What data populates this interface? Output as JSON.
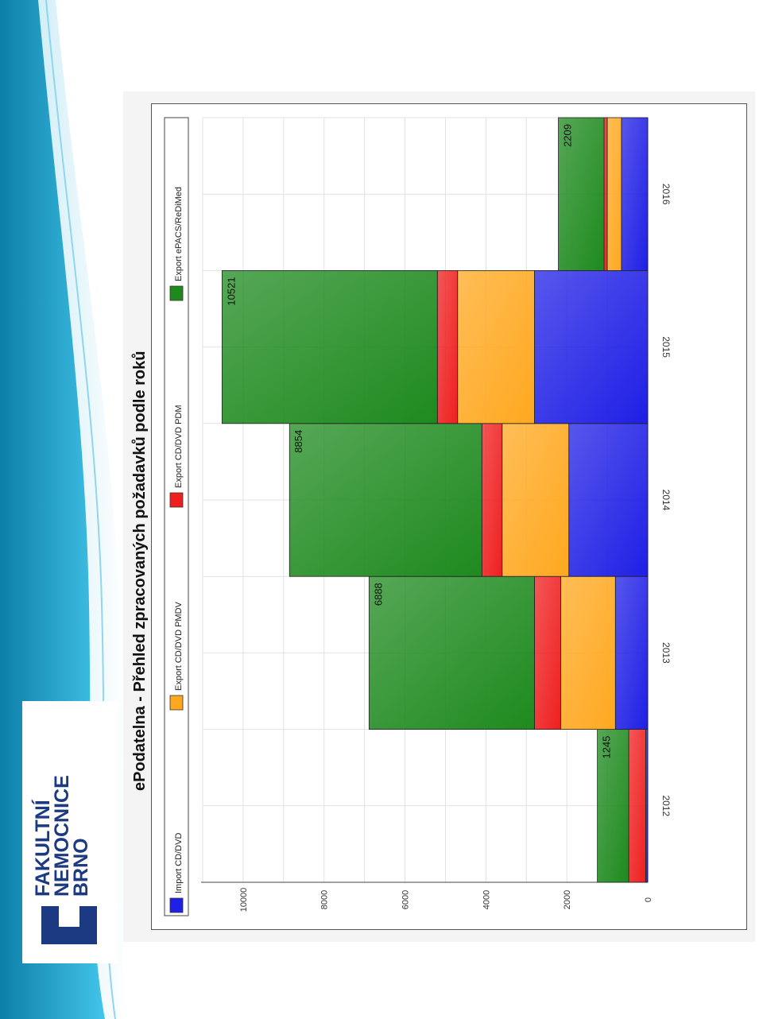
{
  "logo": {
    "lines": [
      "FAKULTNÍ",
      "NEMOCNICE",
      "BRNO"
    ],
    "text": "FAKULTNÍ\nNEMOCNICE\nBRNO",
    "color": "#1c3a82"
  },
  "colors": {
    "Import CD/DVD": "#1f1fe6",
    "Export CD/DVD PMDV": "#ffa81f",
    "Export CD/DVD PDM": "#ef1f1f",
    "Export ePACS/ReDiMed": "#1e8a1e"
  },
  "chart_data": {
    "type": "bar",
    "stacked": true,
    "orientation": "vertical, page rotated 90° clockwise",
    "title": "ePodatelna - Přehled zpracovaných požadavků podle roků",
    "categories": [
      "2012",
      "2013",
      "2014",
      "2015",
      "2016"
    ],
    "series": [
      {
        "name": "Import CD/DVD",
        "values": [
          50,
          800,
          1950,
          2800,
          650
        ]
      },
      {
        "name": "Export CD/DVD PMDV",
        "values": [
          0,
          1350,
          1650,
          1900,
          350
        ]
      },
      {
        "name": "Export CD/DVD PDM",
        "values": [
          420,
          650,
          500,
          500,
          80
        ]
      },
      {
        "name": "Export ePACS/ReDiMed",
        "values": [
          775,
          4088,
          4754,
          5321,
          1129
        ]
      }
    ],
    "totals": [
      1245,
      6888,
      8854,
      10521,
      2209
    ],
    "yticks": [
      "0",
      "2000",
      "4000",
      "6000",
      "8000",
      "10000"
    ],
    "xlabel": "",
    "ylabel": "",
    "ylim": [
      0,
      11000
    ],
    "legend_position": "top",
    "grid": true
  }
}
